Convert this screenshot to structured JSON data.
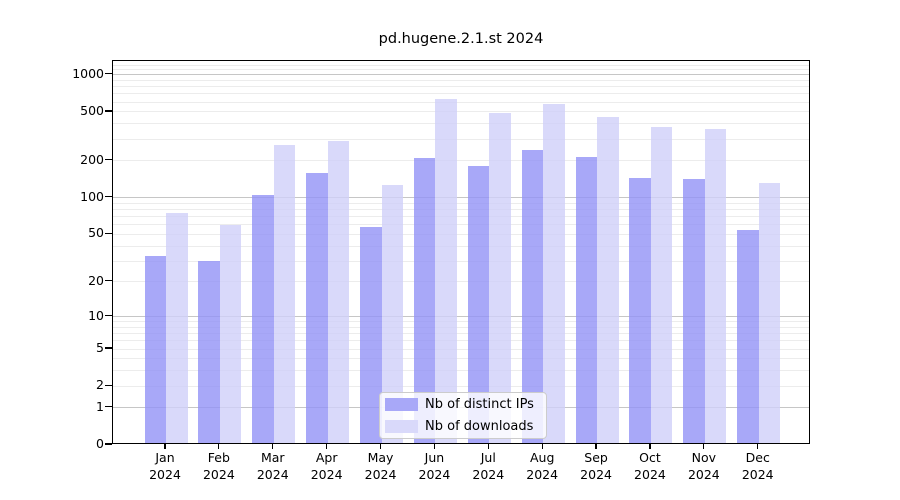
{
  "chart_data": {
    "type": "bar",
    "title": "pd.hugene.2.1.st 2024",
    "categories": [
      "Jan",
      "Feb",
      "Mar",
      "Apr",
      "May",
      "Jun",
      "Jul",
      "Aug",
      "Sep",
      "Oct",
      "Nov",
      "Dec"
    ],
    "year_label": "2024",
    "series": [
      {
        "name": "Nb of distinct IPs",
        "color": "#a8a8f8",
        "values": [
          33,
          30,
          105,
          160,
          58,
          210,
          183,
          245,
          215,
          145,
          141,
          54
        ]
      },
      {
        "name": "Nb of downloads",
        "color": "#d9d9fa",
        "values": [
          75,
          60,
          270,
          290,
          128,
          640,
          487,
          575,
          455,
          377,
          366,
          132
        ]
      }
    ],
    "y_axis": {
      "scale": "log10(1+x)",
      "tick_values": [
        0,
        1,
        2,
        5,
        10,
        20,
        50,
        100,
        200,
        500,
        1000
      ],
      "tick_labels": [
        "0",
        "1",
        "2",
        "5",
        "10",
        "20",
        "50",
        "100",
        "200",
        "500",
        "1000"
      ],
      "top_value": 1250
    },
    "grid": {
      "major_line_values": [
        1,
        10,
        100,
        1000
      ],
      "minor_line_color": "#ececec",
      "major_line_color": "#c6c6c6"
    },
    "legend": {
      "position": "lower center",
      "entries": [
        "Nb of distinct IPs",
        "Nb of downloads"
      ]
    }
  }
}
